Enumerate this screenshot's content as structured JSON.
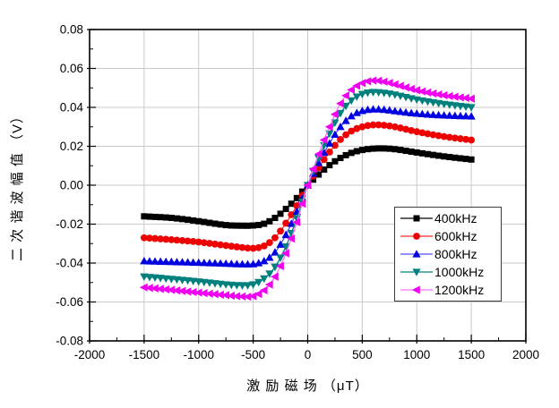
{
  "figure": {
    "background": "#ffffff",
    "plot_border_color": "#000000",
    "text_color": "#000000"
  },
  "chart_data": {
    "type": "line",
    "title": "",
    "xlabel": "激励磁场（μT）",
    "xlabel_display": "激 励 磁 场 （μT）",
    "ylabel": "二次谐波幅值（V）",
    "ylabel_display": "二 次 谐 波 幅 值 （V）",
    "xlim": [
      -2000,
      2000
    ],
    "ylim": [
      -0.08,
      0.08
    ],
    "x_tick_labels": [
      "-2000",
      "-1500",
      "-1000",
      "-500",
      "0",
      "500",
      "1000",
      "1500",
      "2000"
    ],
    "y_tick_labels": [
      "-0.08",
      "-0.06",
      "-0.04",
      "-0.02",
      "0.00",
      "0.02",
      "0.04",
      "0.06",
      "0.08"
    ],
    "x_minor_step": 250,
    "y_minor_step": 0.01,
    "grid": true,
    "grid_color": "#c9c9c9",
    "legend_position": "inside-right-lower",
    "marker_step": 50,
    "x_anchors": [
      -1500,
      -1250,
      -1000,
      -750,
      -600,
      -500,
      -400,
      -300,
      -200,
      -100,
      0,
      100,
      200,
      300,
      400,
      500,
      600,
      700,
      800,
      1000,
      1250,
      1500
    ],
    "series": [
      {
        "name": "400kHz",
        "marker": "square",
        "color": "#000000",
        "line_color": "#000000",
        "y": [
          -0.016,
          -0.0168,
          -0.0185,
          -0.0205,
          -0.0208,
          -0.0207,
          -0.0198,
          -0.0168,
          -0.0122,
          -0.0066,
          0.0,
          0.0055,
          0.0103,
          0.014,
          0.0166,
          0.0181,
          0.0188,
          0.0189,
          0.0185,
          0.0168,
          0.0148,
          0.0132
        ]
      },
      {
        "name": "600kHz",
        "marker": "circle",
        "color": "#ee0000",
        "line_color": "#ff2a2a",
        "y": [
          -0.027,
          -0.028,
          -0.0292,
          -0.031,
          -0.032,
          -0.0324,
          -0.0312,
          -0.027,
          -0.0195,
          -0.0105,
          0.0,
          0.009,
          0.017,
          0.0235,
          0.0278,
          0.03,
          0.031,
          0.0308,
          0.03,
          0.0275,
          0.025,
          0.0232
        ]
      },
      {
        "name": "800kHz",
        "marker": "triangle-up",
        "color": "#0000e0",
        "line_color": "#4d4dff",
        "y": [
          -0.039,
          -0.0394,
          -0.0398,
          -0.0403,
          -0.0406,
          -0.0405,
          -0.039,
          -0.0345,
          -0.0255,
          -0.0135,
          0.0,
          0.0115,
          0.0215,
          0.03,
          0.0355,
          0.0382,
          0.039,
          0.0388,
          0.0381,
          0.0368,
          0.0359,
          0.0354
        ]
      },
      {
        "name": "1000kHz",
        "marker": "triangle-down",
        "color": "#00807d",
        "line_color": "#00807d",
        "y": [
          -0.047,
          -0.0482,
          -0.0495,
          -0.051,
          -0.0515,
          -0.051,
          -0.048,
          -0.042,
          -0.0315,
          -0.017,
          0.0,
          0.014,
          0.0265,
          0.037,
          0.0435,
          0.0468,
          0.0478,
          0.0474,
          0.0465,
          0.044,
          0.0417,
          0.04
        ]
      },
      {
        "name": "1200kHz",
        "marker": "triangle-left",
        "color": "#f000f0",
        "line_color": "#ff70ff",
        "y": [
          -0.0525,
          -0.0538,
          -0.0552,
          -0.0565,
          -0.0572,
          -0.057,
          -0.054,
          -0.047,
          -0.035,
          -0.019,
          0.0,
          0.016,
          0.03,
          0.042,
          0.049,
          0.0525,
          0.0538,
          0.0532,
          0.0518,
          0.0488,
          0.0462,
          0.0445
        ]
      }
    ]
  }
}
